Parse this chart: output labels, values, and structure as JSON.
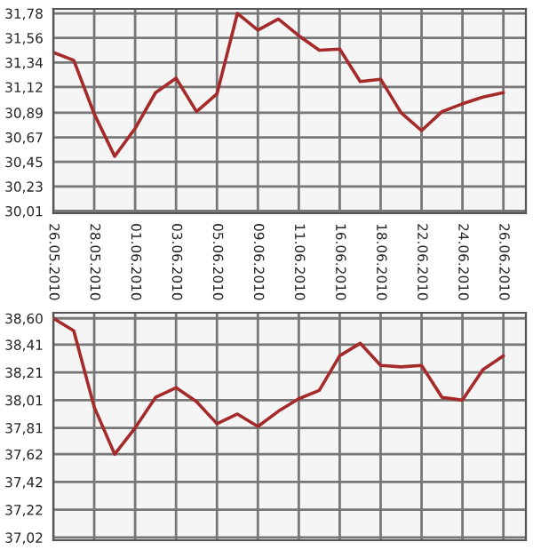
{
  "chart_data": [
    {
      "type": "line",
      "categories": [
        "26.05.2010",
        null,
        "28.05.2010",
        null,
        "01.06.2010",
        null,
        "03.06.2010",
        null,
        "05.06.2010",
        null,
        "09.06.2010",
        null,
        "11.06.2010",
        null,
        "16.06.2010",
        null,
        "18.06.2010",
        null,
        "22.06.2010",
        null,
        "24.06.2010",
        null,
        "26.06.2010"
      ],
      "series": [
        {
          "color": "#a52a2a",
          "values": [
            31.43,
            31.36,
            30.88,
            30.5,
            30.75,
            31.07,
            31.2,
            30.9,
            31.06,
            31.78,
            31.63,
            31.73,
            31.58,
            31.45,
            31.46,
            31.17,
            31.19,
            30.89,
            30.73,
            30.9,
            30.97,
            31.03,
            31.07
          ]
        }
      ],
      "ylim": [
        29.99,
        31.82
      ],
      "yticks": [
        {
          "value": 30.01,
          "label": "30,01"
        },
        {
          "value": 30.23,
          "label": "30,23"
        },
        {
          "value": 30.45,
          "label": "30,45"
        },
        {
          "value": 30.67,
          "label": "30,67"
        },
        {
          "value": 30.89,
          "label": "30,89"
        },
        {
          "value": 31.12,
          "label": "31,12"
        },
        {
          "value": 31.34,
          "label": "31,34"
        },
        {
          "value": 31.56,
          "label": "31,56"
        },
        {
          "value": 31.78,
          "label": "31,78"
        }
      ],
      "grid": true
    },
    {
      "type": "line",
      "categories": [
        "26.05.2010",
        null,
        "28.05.2010",
        null,
        "01.06.2010",
        null,
        "03.06.2010",
        null,
        "05.06.2010",
        null,
        "09.06.2010",
        null,
        "11.06.2010",
        null,
        "16.06.2010",
        null,
        "18.06.2010",
        null,
        "22.06.2010",
        null,
        "24.06.2010",
        null,
        "26.06.2010"
      ],
      "series": [
        {
          "color": "#a52a2a",
          "values": [
            38.6,
            38.51,
            37.96,
            37.62,
            37.81,
            38.03,
            38.1,
            38.0,
            37.84,
            37.91,
            37.82,
            37.93,
            38.02,
            38.08,
            38.33,
            38.42,
            38.26,
            38.25,
            38.26,
            38.03,
            38.01,
            38.23,
            38.33
          ]
        }
      ],
      "ylim": [
        37.0,
        38.64
      ],
      "yticks": [
        {
          "value": 37.02,
          "label": "37,02"
        },
        {
          "value": 37.22,
          "label": "37,22"
        },
        {
          "value": 37.42,
          "label": "37,42"
        },
        {
          "value": 37.62,
          "label": "37,62"
        },
        {
          "value": 37.81,
          "label": "37,81"
        },
        {
          "value": 38.01,
          "label": "38,01"
        },
        {
          "value": 38.21,
          "label": "38,21"
        },
        {
          "value": 38.41,
          "label": "38,41"
        },
        {
          "value": 38.6,
          "label": "38,60"
        }
      ],
      "grid": true,
      "tick_labels": "y"
    }
  ]
}
